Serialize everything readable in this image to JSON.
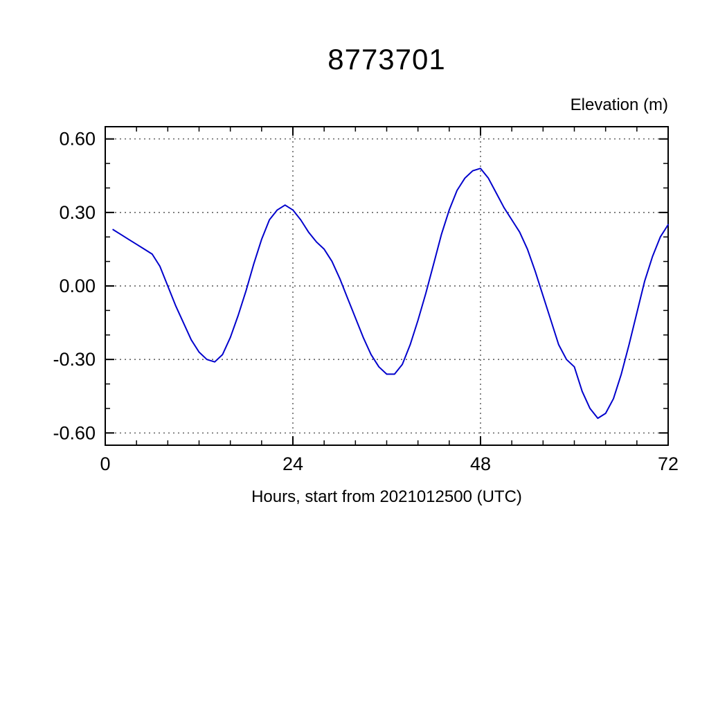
{
  "page": {
    "background": "#ffffff"
  },
  "chart_data": {
    "type": "line",
    "title": "8773701",
    "ylabel": "Elevation (m)",
    "xlabel": "Hours, start from 2021012500 (UTC)",
    "xlim": [
      0,
      72
    ],
    "ylim": [
      -0.65,
      0.65
    ],
    "xticks": [
      0,
      24,
      48,
      72
    ],
    "xticklabels": [
      "0",
      "24",
      "48",
      "72"
    ],
    "xminor_step": 4,
    "yticks": [
      -0.6,
      -0.3,
      0,
      0.3,
      0.6
    ],
    "yticklabels": [
      "-0.60",
      "-0.30",
      "0.00",
      "0.30",
      "0.60"
    ],
    "yminor_step": 0.1,
    "grid": "dotted",
    "legend": "none",
    "line_color": "#0000cc",
    "frame_color": "#000000",
    "series": [
      {
        "name": "tide-elevation",
        "x": [
          1,
          2,
          3,
          4,
          5,
          6,
          7,
          8,
          9,
          10,
          11,
          12,
          13,
          14,
          15,
          16,
          17,
          18,
          19,
          20,
          21,
          22,
          23,
          24,
          25,
          26,
          27,
          28,
          29,
          30,
          31,
          32,
          33,
          34,
          35,
          36,
          37,
          38,
          39,
          40,
          41,
          42,
          43,
          44,
          45,
          46,
          47,
          48,
          49,
          50,
          51,
          52,
          53,
          54,
          55,
          56,
          57,
          58,
          59,
          60,
          61,
          62,
          63,
          64,
          65,
          66,
          67,
          68,
          69,
          70,
          71,
          72
        ],
        "y": [
          0.23,
          0.21,
          0.19,
          0.17,
          0.15,
          0.13,
          0.08,
          0.0,
          -0.08,
          -0.15,
          -0.22,
          -0.27,
          -0.3,
          -0.31,
          -0.28,
          -0.21,
          -0.12,
          -0.02,
          0.09,
          0.19,
          0.27,
          0.31,
          0.33,
          0.31,
          0.27,
          0.22,
          0.18,
          0.15,
          0.1,
          0.03,
          -0.05,
          -0.13,
          -0.21,
          -0.28,
          -0.33,
          -0.36,
          -0.36,
          -0.32,
          -0.24,
          -0.14,
          -0.03,
          0.09,
          0.21,
          0.31,
          0.39,
          0.44,
          0.47,
          0.48,
          0.44,
          0.38,
          0.32,
          0.27,
          0.22,
          0.15,
          0.06,
          -0.04,
          -0.14,
          -0.24,
          -0.3,
          -0.33,
          -0.43,
          -0.5,
          -0.54,
          -0.52,
          -0.46,
          -0.36,
          -0.24,
          -0.11,
          0.02,
          0.12,
          0.2,
          0.25
        ]
      }
    ]
  }
}
